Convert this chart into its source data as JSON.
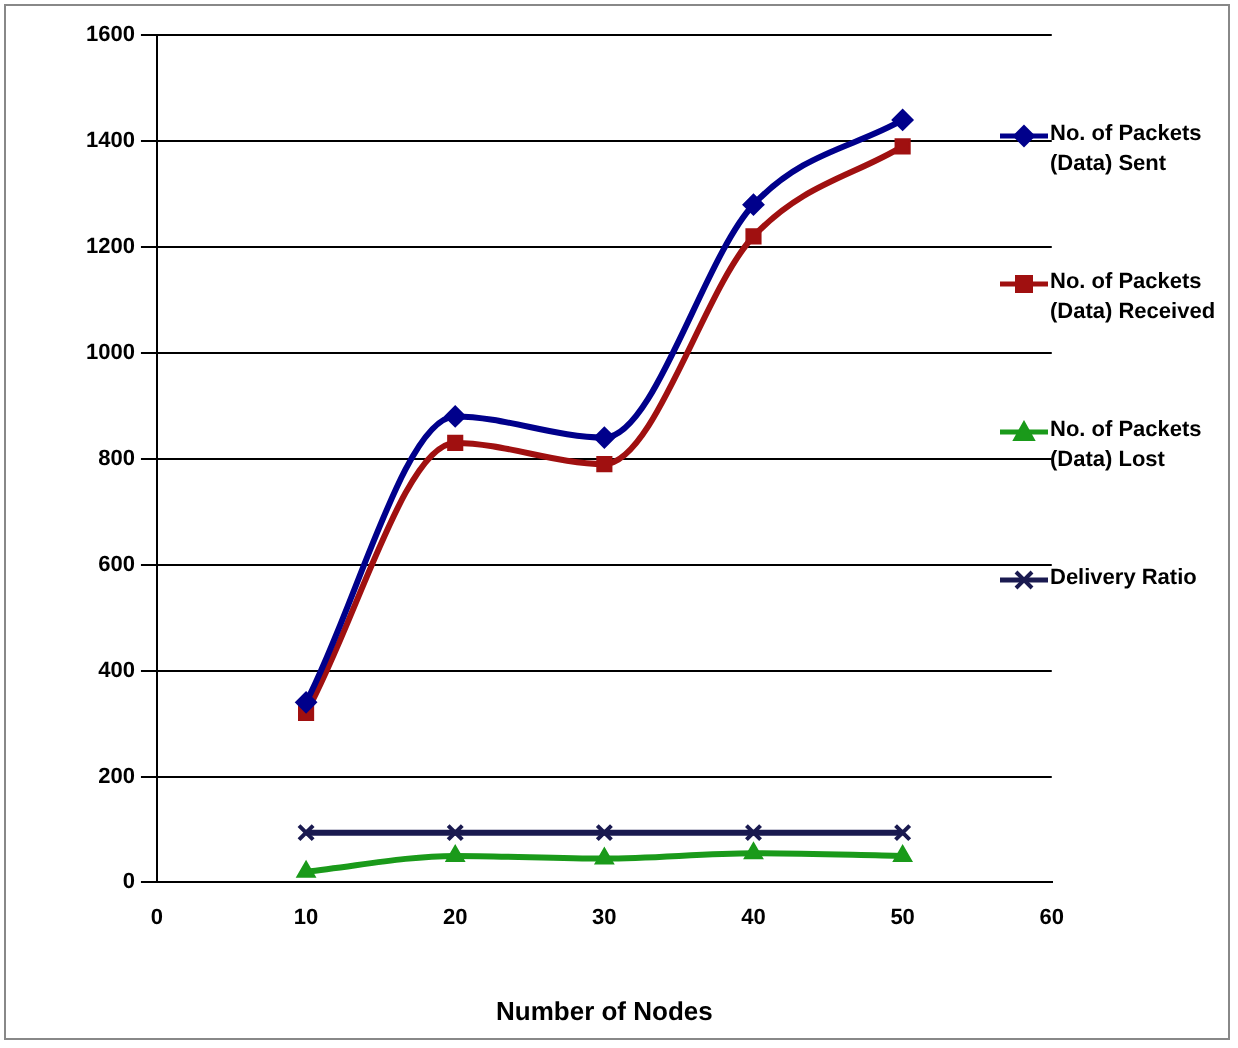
{
  "chart_data": {
    "type": "line",
    "xlabel": "Number of Nodes",
    "x": [
      10,
      20,
      30,
      40,
      50
    ],
    "xlim": [
      0,
      60
    ],
    "xticks": [
      0,
      10,
      20,
      30,
      40,
      50,
      60
    ],
    "ylim": [
      0,
      1600
    ],
    "yticks": [
      0,
      200,
      400,
      600,
      800,
      1000,
      1200,
      1400,
      1600
    ],
    "grid": "y",
    "legend": "right",
    "line_style": "solid",
    "series": [
      {
        "name": "No. of Packets (Data) Sent",
        "color": "#00008b",
        "marker": "diamond",
        "values": [
          340,
          880,
          840,
          1280,
          1440
        ]
      },
      {
        "name": "No. of Packets (Data) Received",
        "color": "#a01010",
        "marker": "square",
        "values": [
          320,
          830,
          790,
          1220,
          1390
        ]
      },
      {
        "name": "No. of Packets (Data) Lost",
        "color": "#1a9a1a",
        "marker": "triangle",
        "values": [
          20,
          50,
          45,
          55,
          50
        ]
      },
      {
        "name": "Delivery Ratio",
        "color": "#1a1a50",
        "marker": "cross",
        "values": [
          94,
          94,
          94,
          94,
          94
        ]
      }
    ]
  }
}
